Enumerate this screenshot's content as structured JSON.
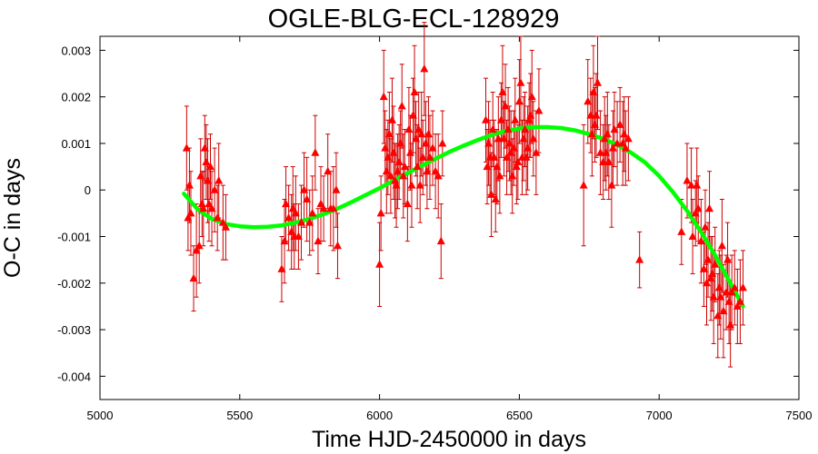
{
  "chart_data": {
    "type": "scatter",
    "title": "OGLE-BLG-ECL-128929",
    "xlabel": "Time HJD-2450000 in days",
    "ylabel": "O-C in days",
    "xlim": [
      5000,
      7500
    ],
    "ylim": [
      -0.0045,
      0.0033
    ],
    "xticks": [
      5000,
      5500,
      6000,
      6500,
      7000,
      7500
    ],
    "yticks": [
      -0.004,
      -0.003,
      -0.002,
      -0.001,
      0,
      0.001,
      0.002,
      0.003
    ],
    "ytick_labels": [
      "-0.004",
      "-0.003",
      "-0.002",
      "-0.001",
      "0",
      "0.001",
      "0.002",
      "0.003"
    ],
    "grid": false,
    "legend": "none",
    "series": [
      {
        "kind": "points_with_errorbars",
        "color": "#ff0000",
        "marker": "triangle",
        "points": [
          [
            5310,
            0.0009,
            0.0009
          ],
          [
            5315,
            -0.0006,
            0.0007
          ],
          [
            5320,
            0.0001,
            0.0008
          ],
          [
            5325,
            -0.0005,
            0.0009
          ],
          [
            5335,
            -0.0019,
            0.0007
          ],
          [
            5345,
            -0.0013,
            0.001
          ],
          [
            5355,
            -0.0012,
            0.0008
          ],
          [
            5360,
            0.0003,
            0.0008
          ],
          [
            5365,
            -0.0003,
            0.0007
          ],
          [
            5370,
            -0.0004,
            0.0008
          ],
          [
            5375,
            0.0009,
            0.0007
          ],
          [
            5380,
            0.0006,
            0.0008
          ],
          [
            5385,
            0.0002,
            0.0009
          ],
          [
            5390,
            -0.0003,
            0.0008
          ],
          [
            5395,
            0.0005,
            0.0007
          ],
          [
            5400,
            -0.0004,
            0.0008
          ],
          [
            5410,
            0.0,
            0.0009
          ],
          [
            5420,
            -0.0006,
            0.0007
          ],
          [
            5425,
            0.0002,
            0.0008
          ],
          [
            5440,
            -0.0007,
            0.0008
          ],
          [
            5450,
            -0.0008,
            0.0007
          ],
          [
            5650,
            -0.0017,
            0.0007
          ],
          [
            5660,
            -0.0011,
            0.0009
          ],
          [
            5665,
            -0.0003,
            0.0008
          ],
          [
            5675,
            -0.0006,
            0.0007
          ],
          [
            5685,
            -0.0009,
            0.0008
          ],
          [
            5690,
            -0.0004,
            0.0009
          ],
          [
            5695,
            -0.001,
            0.0007
          ],
          [
            5700,
            -0.0005,
            0.0008
          ],
          [
            5710,
            -0.001,
            0.0007
          ],
          [
            5720,
            -0.0007,
            0.0008
          ],
          [
            5730,
            0.0,
            0.0008
          ],
          [
            5740,
            -0.0002,
            0.0009
          ],
          [
            5750,
            -0.0007,
            0.0007
          ],
          [
            5760,
            -0.0005,
            0.0008
          ],
          [
            5770,
            0.0008,
            0.0008
          ],
          [
            5780,
            -0.0011,
            0.0007
          ],
          [
            5790,
            -0.0003,
            0.0008
          ],
          [
            5800,
            -0.0004,
            0.0007
          ],
          [
            5815,
            0.0004,
            0.0008
          ],
          [
            5825,
            -0.0004,
            0.0008
          ],
          [
            5835,
            -0.0004,
            0.0009
          ],
          [
            5845,
            0.0,
            0.0008
          ],
          [
            5850,
            -0.0012,
            0.0007
          ],
          [
            6000,
            -0.0016,
            0.0009
          ],
          [
            6005,
            -0.0005,
            0.0008
          ],
          [
            6015,
            0.002,
            0.001
          ],
          [
            6020,
            0.0009,
            0.0008
          ],
          [
            6025,
            0.0004,
            0.0009
          ],
          [
            6030,
            0.0007,
            0.0008
          ],
          [
            6035,
            0.0012,
            0.0009
          ],
          [
            6040,
            0.0003,
            0.0008
          ],
          [
            6045,
            0.0015,
            0.0009
          ],
          [
            6050,
            0.0008,
            0.001
          ],
          [
            6055,
            0.0002,
            0.0008
          ],
          [
            6060,
            0.0001,
            0.0009
          ],
          [
            6065,
            0.0004,
            0.0008
          ],
          [
            6070,
            0.0006,
            0.0008
          ],
          [
            6075,
            0.001,
            0.0007
          ],
          [
            6080,
            0.0018,
            0.0009
          ],
          [
            6085,
            0.0003,
            0.0009
          ],
          [
            6090,
            0.0005,
            0.0008
          ],
          [
            6100,
            -0.0003,
            0.0008
          ],
          [
            6105,
            0.0013,
            0.0009
          ],
          [
            6110,
            0.0008,
            0.0008
          ],
          [
            6115,
            0.0001,
            0.0009
          ],
          [
            6120,
            0.0016,
            0.0008
          ],
          [
            6125,
            0.0021,
            0.001
          ],
          [
            6130,
            0.0011,
            0.0008
          ],
          [
            6135,
            0.0005,
            0.0009
          ],
          [
            6140,
            0.0013,
            0.0008
          ],
          [
            6145,
            0.0001,
            0.0008
          ],
          [
            6150,
            0.0012,
            0.0009
          ],
          [
            6155,
            0.0007,
            0.0008
          ],
          [
            6160,
            0.0026,
            0.001
          ],
          [
            6165,
            0.001,
            0.0009
          ],
          [
            6170,
            0.0004,
            0.0008
          ],
          [
            6175,
            0.0012,
            0.0008
          ],
          [
            6180,
            0.0007,
            0.0009
          ],
          [
            6190,
            0.0009,
            0.0008
          ],
          [
            6200,
            0.0004,
            0.0008
          ],
          [
            6210,
            0.0003,
            0.0009
          ],
          [
            6220,
            -0.0011,
            0.0008
          ],
          [
            6225,
            0.001,
            0.0007
          ],
          [
            6380,
            0.0015,
            0.0009
          ],
          [
            6385,
            0.0005,
            0.0008
          ],
          [
            6390,
            0.001,
            0.0009
          ],
          [
            6395,
            0.0007,
            0.0008
          ],
          [
            6400,
            -0.0001,
            0.0009
          ],
          [
            6405,
            0.0013,
            0.0008
          ],
          [
            6410,
            0.0007,
            0.0008
          ],
          [
            6415,
            -0.0002,
            0.0007
          ],
          [
            6420,
            0.0005,
            0.0008
          ],
          [
            6425,
            0.0011,
            0.0009
          ],
          [
            6430,
            0.0003,
            0.0008
          ],
          [
            6435,
            0.0015,
            0.0008
          ],
          [
            6440,
            0.0021,
            0.001
          ],
          [
            6445,
            0.0011,
            0.0008
          ],
          [
            6450,
            0.0018,
            0.0009
          ],
          [
            6455,
            0.0007,
            0.0008
          ],
          [
            6460,
            0.0013,
            0.0009
          ],
          [
            6465,
            0.001,
            0.0008
          ],
          [
            6470,
            0.0008,
            0.0009
          ],
          [
            6475,
            0.0003,
            0.0008
          ],
          [
            6480,
            0.0009,
            0.0008
          ],
          [
            6485,
            0.0015,
            0.0009
          ],
          [
            6490,
            0.0005,
            0.0008
          ],
          [
            6495,
            0.0006,
            0.0008
          ],
          [
            6500,
            0.0019,
            0.0009
          ],
          [
            6505,
            0.0023,
            0.001
          ],
          [
            6510,
            0.0007,
            0.0008
          ],
          [
            6515,
            0.0011,
            0.0009
          ],
          [
            6520,
            0.0013,
            0.0008
          ],
          [
            6525,
            0.0007,
            0.0008
          ],
          [
            6530,
            0.0009,
            0.0009
          ],
          [
            6535,
            0.0015,
            0.0008
          ],
          [
            6540,
            0.0016,
            0.0009
          ],
          [
            6545,
            0.002,
            0.001
          ],
          [
            6550,
            0.0011,
            0.0008
          ],
          [
            6560,
            0.0008,
            0.0009
          ],
          [
            6570,
            0.0017,
            0.0009
          ],
          [
            6730,
            0.0001,
            0.0013
          ],
          [
            6745,
            0.0019,
            0.0009
          ],
          [
            6755,
            0.0016,
            0.0008
          ],
          [
            6760,
            0.0012,
            0.0009
          ],
          [
            6765,
            0.0021,
            0.001
          ],
          [
            6770,
            0.0014,
            0.0008
          ],
          [
            6775,
            0.0016,
            0.0009
          ],
          [
            6780,
            0.0023,
            0.001
          ],
          [
            6790,
            0.0008,
            0.0009
          ],
          [
            6800,
            0.0006,
            0.0008
          ],
          [
            6805,
            0.0011,
            0.0009
          ],
          [
            6810,
            0.0008,
            0.0008
          ],
          [
            6815,
            0.0012,
            0.0009
          ],
          [
            6820,
            0.0006,
            0.0008
          ],
          [
            6830,
            0.0001,
            0.0009
          ],
          [
            6835,
            0.0009,
            0.0008
          ],
          [
            6840,
            0.0013,
            0.0008
          ],
          [
            6850,
            0.001,
            0.0009
          ],
          [
            6860,
            0.0014,
            0.0008
          ],
          [
            6870,
            0.001,
            0.0009
          ],
          [
            6875,
            0.0012,
            0.0008
          ],
          [
            6880,
            0.0009,
            0.0008
          ],
          [
            6890,
            0.0011,
            0.0009
          ],
          [
            6930,
            -0.0015,
            0.0006
          ],
          [
            7080,
            -0.0009,
            0.0007
          ],
          [
            7100,
            0.0002,
            0.0008
          ],
          [
            7115,
            0.0001,
            0.0008
          ],
          [
            7120,
            -0.001,
            0.0008
          ],
          [
            7130,
            -0.0005,
            0.0007
          ],
          [
            7135,
            0.0001,
            0.0008
          ],
          [
            7140,
            -0.0004,
            0.0007
          ],
          [
            7150,
            -0.0011,
            0.0009
          ],
          [
            7160,
            -0.0017,
            0.0008
          ],
          [
            7165,
            -0.0008,
            0.0008
          ],
          [
            7170,
            -0.002,
            0.0009
          ],
          [
            7175,
            -0.0015,
            0.0008
          ],
          [
            7180,
            -0.0004,
            0.0008
          ],
          [
            7185,
            -0.0019,
            0.0009
          ],
          [
            7190,
            -0.0018,
            0.0008
          ],
          [
            7195,
            -0.0023,
            0.001
          ],
          [
            7200,
            -0.0016,
            0.0008
          ],
          [
            7210,
            -0.0027,
            0.0009
          ],
          [
            7215,
            -0.0021,
            0.0008
          ],
          [
            7220,
            -0.0023,
            0.0009
          ],
          [
            7225,
            -0.0012,
            0.001
          ],
          [
            7230,
            -0.0026,
            0.001
          ],
          [
            7240,
            -0.0022,
            0.0008
          ],
          [
            7245,
            -0.0015,
            0.0008
          ],
          [
            7250,
            -0.0024,
            0.0009
          ],
          [
            7255,
            -0.0029,
            0.0009
          ],
          [
            7260,
            -0.0022,
            0.0008
          ],
          [
            7270,
            -0.0021,
            0.0008
          ],
          [
            7280,
            -0.0025,
            0.0008
          ],
          [
            7290,
            -0.0024,
            0.0009
          ],
          [
            7300,
            -0.0021,
            0.0008
          ]
        ]
      },
      {
        "kind": "fit_curve",
        "color": "#00ff00",
        "x": [
          5300,
          5350,
          5400,
          5450,
          5500,
          5550,
          5600,
          5650,
          5700,
          5750,
          5800,
          5850,
          5900,
          5950,
          6000,
          6050,
          6100,
          6150,
          6200,
          6250,
          6300,
          6350,
          6400,
          6450,
          6500,
          6550,
          6600,
          6650,
          6700,
          6750,
          6800,
          6850,
          6900,
          6950,
          7000,
          7050,
          7100,
          7150,
          7200,
          7250,
          7300
        ],
        "y": [
          -8e-05,
          -0.00042,
          -0.00062,
          -0.00073,
          -0.00078,
          -0.0008,
          -0.00079,
          -0.00076,
          -0.0007,
          -0.00062,
          -0.00052,
          -0.0004,
          -0.00026,
          -0.00011,
          4e-05,
          0.0002,
          0.00036,
          0.00052,
          0.00067,
          0.00082,
          0.00095,
          0.00107,
          0.00118,
          0.00126,
          0.00132,
          0.00135,
          0.00135,
          0.00133,
          0.00128,
          0.0012,
          0.0011,
          0.00097,
          0.0008,
          0.00059,
          0.0003,
          -5e-05,
          -0.00045,
          -0.0009,
          -0.0014,
          -0.00195,
          -0.0025
        ]
      }
    ]
  }
}
